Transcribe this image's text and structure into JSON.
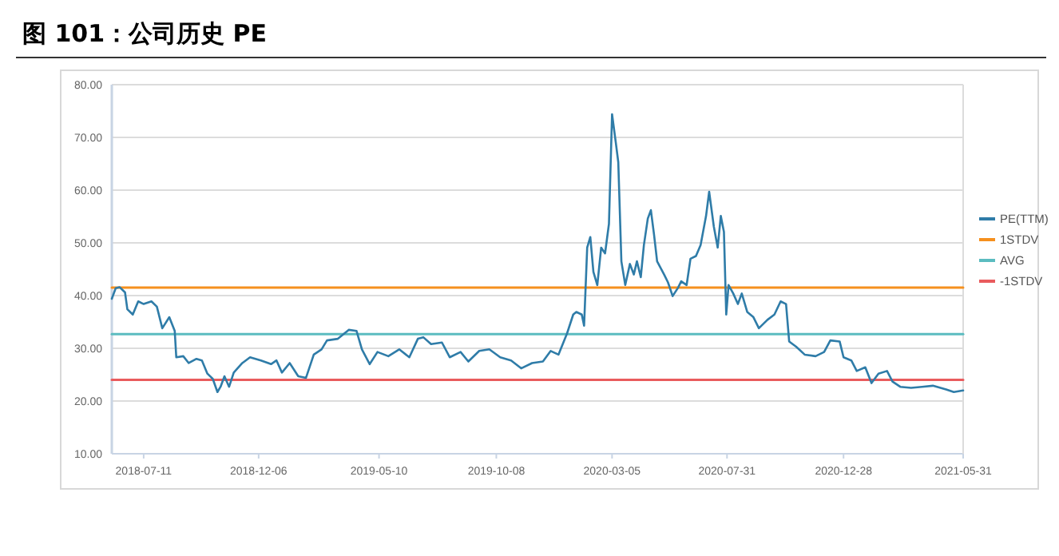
{
  "chart_data": {
    "type": "line",
    "title": "图 101：公司历史 PE",
    "xlim": [
      "2018-05-31",
      "2021-05-31"
    ],
    "xticks": [
      "2018-07-11",
      "2018-12-06",
      "2019-05-10",
      "2019-10-08",
      "2020-03-05",
      "2020-07-31",
      "2020-12-28",
      "2021-05-31"
    ],
    "ylim": [
      10,
      80
    ],
    "yticks": [
      {
        "value": 10,
        "label": "10.00"
      },
      {
        "value": 20,
        "label": "20.00"
      },
      {
        "value": 30,
        "label": "30.00"
      },
      {
        "value": 40,
        "label": "40.00"
      },
      {
        "value": 50,
        "label": "50.00"
      },
      {
        "value": 60,
        "label": "60.00"
      },
      {
        "value": 70,
        "label": "70.00"
      },
      {
        "value": 80,
        "label": "80.00"
      }
    ],
    "grid": "y",
    "legend": "right",
    "marker": "none",
    "line_style": "solid",
    "series": [
      {
        "name": "PE(TTM)",
        "color": "#2f7ca8",
        "x": [
          "2018-05-31",
          "2018-06-05",
          "2018-06-10",
          "2018-06-17",
          "2018-06-20",
          "2018-06-27",
          "2018-07-04",
          "2018-07-11",
          "2018-07-21",
          "2018-07-28",
          "2018-08-04",
          "2018-08-13",
          "2018-08-20",
          "2018-08-22",
          "2018-08-31",
          "2018-09-07",
          "2018-09-17",
          "2018-09-24",
          "2018-10-01",
          "2018-10-08",
          "2018-10-14",
          "2018-10-18",
          "2018-10-23",
          "2018-10-29",
          "2018-11-04",
          "2018-11-15",
          "2018-11-25",
          "2018-12-09",
          "2018-12-22",
          "2018-12-29",
          "2019-01-05",
          "2019-01-15",
          "2019-01-26",
          "2019-02-05",
          "2019-02-15",
          "2019-02-25",
          "2019-03-04",
          "2019-03-18",
          "2019-04-01",
          "2019-04-11",
          "2019-04-18",
          "2019-04-28",
          "2019-05-08",
          "2019-05-22",
          "2019-06-05",
          "2019-06-18",
          "2019-06-29",
          "2019-07-06",
          "2019-07-16",
          "2019-07-30",
          "2019-08-09",
          "2019-08-23",
          "2019-09-02",
          "2019-09-16",
          "2019-09-29",
          "2019-10-13",
          "2019-10-27",
          "2019-11-09",
          "2019-11-23",
          "2019-12-07",
          "2019-12-17",
          "2019-12-27",
          "2020-01-07",
          "2020-01-15",
          "2020-01-19",
          "2020-01-26",
          "2020-01-29",
          "2020-02-02",
          "2020-02-06",
          "2020-02-10",
          "2020-02-15",
          "2020-02-20",
          "2020-02-25",
          "2020-03-01",
          "2020-03-05",
          "2020-03-10",
          "2020-03-13",
          "2020-03-17",
          "2020-03-22",
          "2020-03-28",
          "2020-04-02",
          "2020-04-06",
          "2020-04-11",
          "2020-04-15",
          "2020-04-20",
          "2020-04-24",
          "2020-04-28",
          "2020-05-02",
          "2020-05-11",
          "2020-05-16",
          "2020-05-22",
          "2020-05-29",
          "2020-06-02",
          "2020-06-09",
          "2020-06-14",
          "2020-06-21",
          "2020-06-27",
          "2020-07-04",
          "2020-07-08",
          "2020-07-14",
          "2020-07-19",
          "2020-07-23",
          "2020-07-27",
          "2020-07-30",
          "2020-08-02",
          "2020-08-08",
          "2020-08-14",
          "2020-08-19",
          "2020-08-26",
          "2020-09-03",
          "2020-09-10",
          "2020-09-21",
          "2020-09-30",
          "2020-10-08",
          "2020-10-15",
          "2020-10-19",
          "2020-10-28",
          "2020-11-08",
          "2020-11-22",
          "2020-12-03",
          "2020-12-11",
          "2020-12-23",
          "2020-12-28",
          "2021-01-07",
          "2021-01-14",
          "2021-01-25",
          "2021-02-02",
          "2021-02-11",
          "2021-02-22",
          "2021-03-01",
          "2021-03-11",
          "2021-03-25",
          "2021-04-08",
          "2021-04-22",
          "2021-05-09",
          "2021-05-19",
          "2021-05-31"
        ],
        "values": [
          39.4,
          41.4,
          41.6,
          40.6,
          37.4,
          36.4,
          38.9,
          38.4,
          38.9,
          37.9,
          33.8,
          35.9,
          33.3,
          28.3,
          28.5,
          27.2,
          28.0,
          27.7,
          25.2,
          24.2,
          21.7,
          22.7,
          24.7,
          22.7,
          25.4,
          27.2,
          28.3,
          27.7,
          27.0,
          27.7,
          25.4,
          27.2,
          24.7,
          24.4,
          28.8,
          29.8,
          31.5,
          31.8,
          33.5,
          33.3,
          29.8,
          27.0,
          29.3,
          28.5,
          29.8,
          28.3,
          31.8,
          32.1,
          30.8,
          31.1,
          28.3,
          29.3,
          27.5,
          29.5,
          29.8,
          28.3,
          27.7,
          26.2,
          27.2,
          27.5,
          29.5,
          28.8,
          32.8,
          36.4,
          36.9,
          36.4,
          34.3,
          49.1,
          51.1,
          44.5,
          42.0,
          49.1,
          48.0,
          53.6,
          74.4,
          68.8,
          65.3,
          46.5,
          42.0,
          46.0,
          44.0,
          46.5,
          43.5,
          49.6,
          54.6,
          56.2,
          51.6,
          46.5,
          44.0,
          42.5,
          39.9,
          41.5,
          42.7,
          42.0,
          47.0,
          47.5,
          49.6,
          55.1,
          59.7,
          53.1,
          49.1,
          55.1,
          52.1,
          36.4,
          42.0,
          40.4,
          38.4,
          40.4,
          36.9,
          35.9,
          33.8,
          35.4,
          36.4,
          38.9,
          38.4,
          31.3,
          30.3,
          28.8,
          28.5,
          29.3,
          31.5,
          31.3,
          28.3,
          27.7,
          25.7,
          26.4,
          23.4,
          25.2,
          25.7,
          23.7,
          22.7,
          22.5,
          22.7,
          22.9,
          22.2,
          21.7,
          22.0
        ]
      },
      {
        "name": "1STDV",
        "color": "#f5901e",
        "x": [
          "2018-05-31",
          "2021-05-31"
        ],
        "values": [
          41.5,
          41.5
        ]
      },
      {
        "name": "AVG",
        "color": "#5bbcc0",
        "x": [
          "2018-05-31",
          "2021-05-31"
        ],
        "values": [
          32.7,
          32.7
        ]
      },
      {
        "name": "-1STDV",
        "color": "#e95b5d",
        "x": [
          "2018-05-31",
          "2021-05-31"
        ],
        "values": [
          24.0,
          24.0
        ]
      }
    ]
  }
}
